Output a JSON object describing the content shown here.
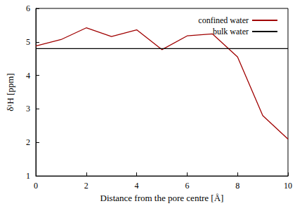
{
  "chart_data": {
    "type": "line",
    "x_label": "Distance from the pore centre [Å]",
    "y_label": "δ¹H [ppm]",
    "x": [
      0,
      1,
      2,
      3,
      4,
      5,
      6,
      7,
      8,
      9,
      10
    ],
    "series": [
      {
        "name": "confined water",
        "color": "#a00000",
        "values": [
          4.88,
          5.07,
          5.42,
          5.16,
          5.36,
          4.77,
          5.18,
          5.24,
          4.55,
          2.8,
          2.1
        ]
      },
      {
        "name": "bulk water",
        "color": "#000000",
        "values": [
          4.8,
          4.8,
          4.8,
          4.8,
          4.8,
          4.8,
          4.8,
          4.8,
          4.8,
          4.8,
          4.8
        ]
      }
    ],
    "xlim": [
      0,
      10
    ],
    "xticks": [
      0,
      2,
      4,
      6,
      8,
      10
    ],
    "ylim": [
      1,
      6
    ],
    "yticks": [
      1,
      2,
      3,
      4,
      5,
      6
    ],
    "grid": false,
    "legend": "upper right"
  }
}
